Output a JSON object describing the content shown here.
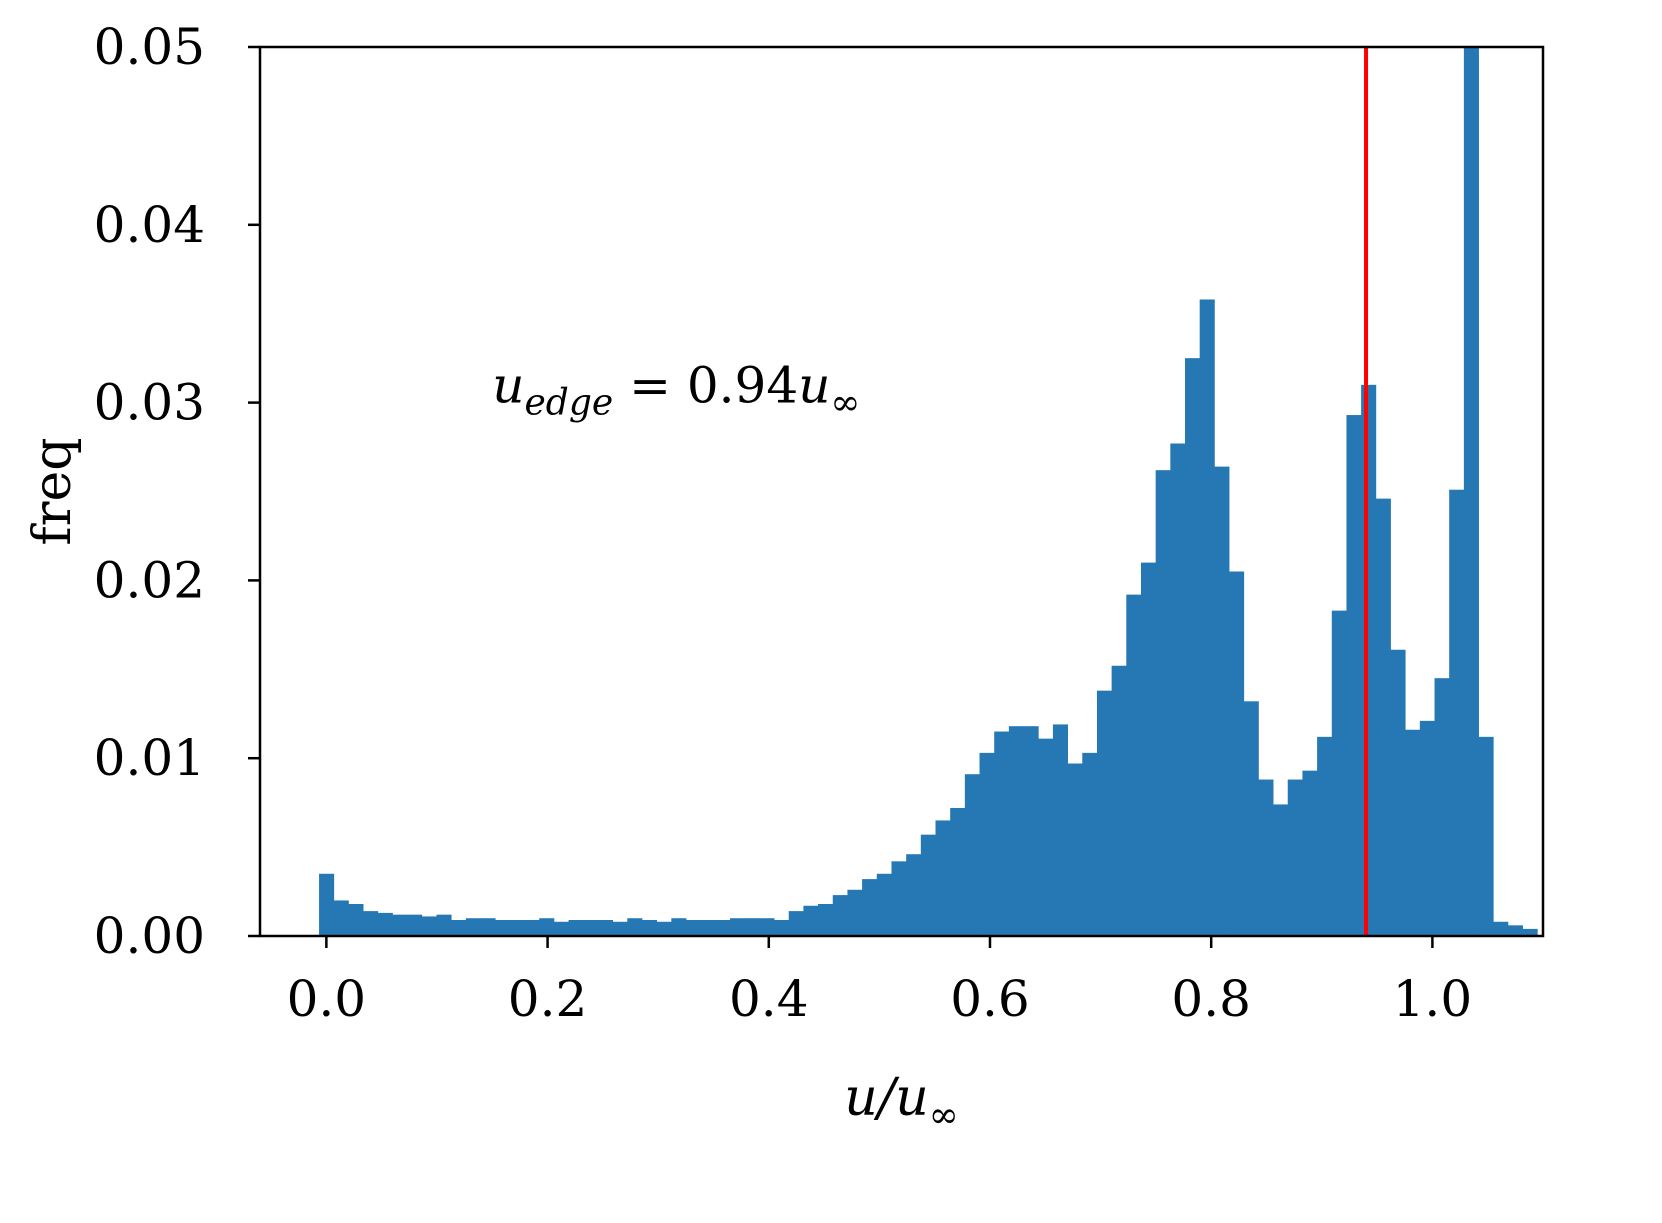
{
  "chart_data": {
    "type": "bar",
    "xlabel": "u/u∞",
    "xlabel_parts": {
      "base": "u/u",
      "sub": "∞"
    },
    "ylabel": "freq",
    "xlim": [
      -0.06,
      1.1
    ],
    "ylim": [
      0,
      0.05
    ],
    "x_ticks": [
      0.0,
      0.2,
      0.4,
      0.6,
      0.8,
      1.0
    ],
    "x_tick_labels": [
      "0.0",
      "0.2",
      "0.4",
      "0.6",
      "0.8",
      "1.0"
    ],
    "y_ticks": [
      0.0,
      0.01,
      0.02,
      0.03,
      0.04,
      0.05
    ],
    "y_tick_labels": [
      "0.00",
      "0.01",
      "0.02",
      "0.03",
      "0.04",
      "0.05"
    ],
    "bin_start": -0.0066,
    "bin_width": 0.01327,
    "values": [
      0.0035,
      0.002,
      0.0018,
      0.0014,
      0.0013,
      0.0012,
      0.0012,
      0.0011,
      0.0012,
      0.0009,
      0.001,
      0.001,
      0.0009,
      0.0009,
      0.0009,
      0.001,
      0.0008,
      0.0009,
      0.0009,
      0.0009,
      0.0008,
      0.001,
      0.0009,
      0.0008,
      0.001,
      0.0009,
      0.0009,
      0.0009,
      0.001,
      0.001,
      0.001,
      0.0009,
      0.0014,
      0.0017,
      0.0018,
      0.0023,
      0.0026,
      0.0032,
      0.0035,
      0.0042,
      0.0046,
      0.0057,
      0.0065,
      0.0072,
      0.0091,
      0.0103,
      0.0115,
      0.0118,
      0.0118,
      0.0111,
      0.0119,
      0.0097,
      0.0103,
      0.0138,
      0.0152,
      0.0192,
      0.021,
      0.0262,
      0.0277,
      0.0325,
      0.0358,
      0.0264,
      0.0205,
      0.0132,
      0.0088,
      0.0074,
      0.0088,
      0.0093,
      0.0112,
      0.0183,
      0.0293,
      0.031,
      0.0246,
      0.0161,
      0.0116,
      0.0121,
      0.0145,
      0.0251,
      0.05,
      0.0112,
      0.0008,
      0.0006,
      0.0004
    ],
    "bar_color": "#2678b5",
    "vline": {
      "x": 0.94,
      "color": "#ff0000"
    },
    "annotation": {
      "text": "u_edge = 0.94u∞",
      "base": "u",
      "sub": "edge",
      "middle": " = 0.94",
      "base2": "u",
      "sub2": "∞",
      "x": 0.15,
      "y": 0.03
    },
    "grid": false
  }
}
